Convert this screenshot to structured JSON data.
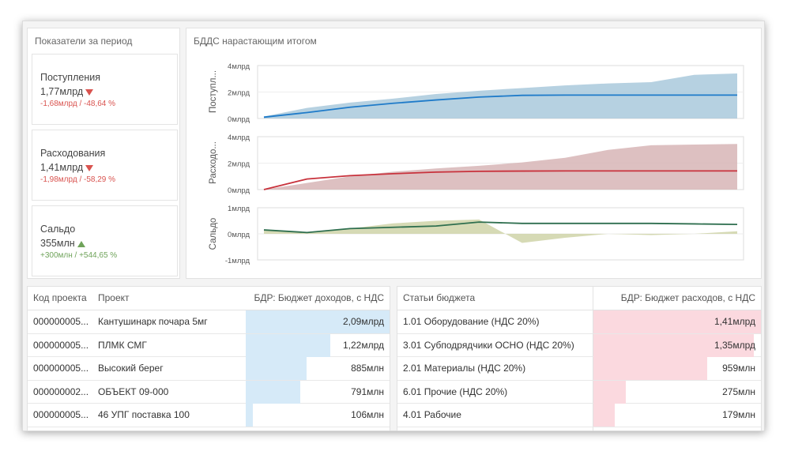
{
  "kpi_panel": {
    "title": "Показатели за период",
    "cards": [
      {
        "name": "Поступления",
        "value": "1,77млрд",
        "delta": "-1,68млрд / -48,64 %",
        "trend": "down"
      },
      {
        "name": "Расходования",
        "value": "1,41млрд",
        "delta": "-1,98млрд / -58,29 %",
        "trend": "down"
      },
      {
        "name": "Сальдо",
        "value": "355млн",
        "delta": "+300млн / +544,65 %",
        "trend": "up"
      }
    ]
  },
  "chart_panel": {
    "title": "БДДС нарастающим итогом"
  },
  "chart_data": [
    {
      "type": "area",
      "ylabel": "Поступл...",
      "yticks": [
        "4млрд",
        "2млрд",
        "0млрд"
      ],
      "ylim": [
        0,
        4
      ],
      "unit": "млрд",
      "x": [
        1,
        2,
        3,
        4,
        5,
        6,
        7,
        8,
        9,
        10,
        11,
        12
      ],
      "series": [
        {
          "values": [
            0.15,
            0.8,
            1.2,
            1.5,
            1.85,
            2.1,
            2.3,
            2.5,
            2.65,
            2.75,
            3.3,
            3.4
          ],
          "color": "#a9c9dc",
          "style": "area"
        },
        {
          "values": [
            0.1,
            0.45,
            0.85,
            1.15,
            1.4,
            1.62,
            1.75,
            1.77,
            1.77,
            1.77,
            1.77,
            1.77
          ],
          "color": "#1f7bc9",
          "style": "line"
        }
      ]
    },
    {
      "type": "area",
      "ylabel": "Расходо...",
      "yticks": [
        "4млрд",
        "2млрд",
        "0млрд"
      ],
      "ylim": [
        0,
        4
      ],
      "unit": "млрд",
      "x": [
        1,
        2,
        3,
        4,
        5,
        6,
        7,
        8,
        9,
        10,
        11,
        12
      ],
      "series": [
        {
          "values": [
            0.0,
            0.5,
            1.0,
            1.35,
            1.6,
            1.8,
            2.05,
            2.4,
            3.0,
            3.35,
            3.4,
            3.45
          ],
          "color": "#d7b5b6",
          "style": "area"
        },
        {
          "values": [
            0.0,
            0.8,
            1.05,
            1.2,
            1.32,
            1.38,
            1.4,
            1.41,
            1.41,
            1.41,
            1.41,
            1.41
          ],
          "color": "#c8323c",
          "style": "line"
        }
      ]
    },
    {
      "type": "area",
      "ylabel": "Сальдо",
      "yticks": [
        "1млрд",
        "0млрд",
        "-1млрд"
      ],
      "ylim": [
        -1,
        1
      ],
      "unit": "млрд",
      "x": [
        1,
        2,
        3,
        4,
        5,
        6,
        7,
        8,
        9,
        10,
        11,
        12
      ],
      "series": [
        {
          "values": [
            0.15,
            0.05,
            0.2,
            0.4,
            0.5,
            0.55,
            -0.35,
            -0.15,
            0.0,
            -0.05,
            0.0,
            0.1
          ],
          "color": "#cfd3a8",
          "style": "area"
        },
        {
          "values": [
            0.15,
            0.05,
            0.2,
            0.25,
            0.3,
            0.45,
            0.4,
            0.4,
            0.4,
            0.4,
            0.38,
            0.36
          ],
          "color": "#2f6f4f",
          "style": "line"
        }
      ]
    }
  ],
  "income_table": {
    "headers": {
      "code": "Код проекта",
      "project": "Проект",
      "value": "БДР: Бюджет доходов, с НДС"
    },
    "bar_color": "#d6eaf8",
    "rows": [
      {
        "code": "000000005...",
        "project": "Кантушинарк почара 5мг",
        "value": "2,09млрд",
        "ratio": 1.0
      },
      {
        "code": "000000005...",
        "project": "ПЛМК СМГ",
        "value": "1,22млрд",
        "ratio": 0.584
      },
      {
        "code": "000000005...",
        "project": "Высокий берег",
        "value": "885млн",
        "ratio": 0.423
      },
      {
        "code": "000000002...",
        "project": "ОБЪЕКТ 09-000",
        "value": "791млн",
        "ratio": 0.378
      },
      {
        "code": "000000005...",
        "project": "46 УПГ поставка 100",
        "value": "106млн",
        "ratio": 0.051
      }
    ]
  },
  "expense_table": {
    "headers": {
      "item": "Статьи бюджета",
      "value": "БДР: Бюджет расходов, с НДС"
    },
    "bar_color": "#fbd9df",
    "rows": [
      {
        "item": "1.01 Оборудование (НДС 20%)",
        "value": "1,41млрд",
        "ratio": 1.0
      },
      {
        "item": "3.01 Субподрядчики ОСНО (НДС 20%)",
        "value": "1,35млрд",
        "ratio": 0.957
      },
      {
        "item": "2.01 Материалы (НДС 20%)",
        "value": "959млн",
        "ratio": 0.68
      },
      {
        "item": "6.01 Прочие (НДС 20%)",
        "value": "275млн",
        "ratio": 0.195
      },
      {
        "item": "4.01 Рабочие",
        "value": "179млн",
        "ratio": 0.127
      }
    ]
  }
}
